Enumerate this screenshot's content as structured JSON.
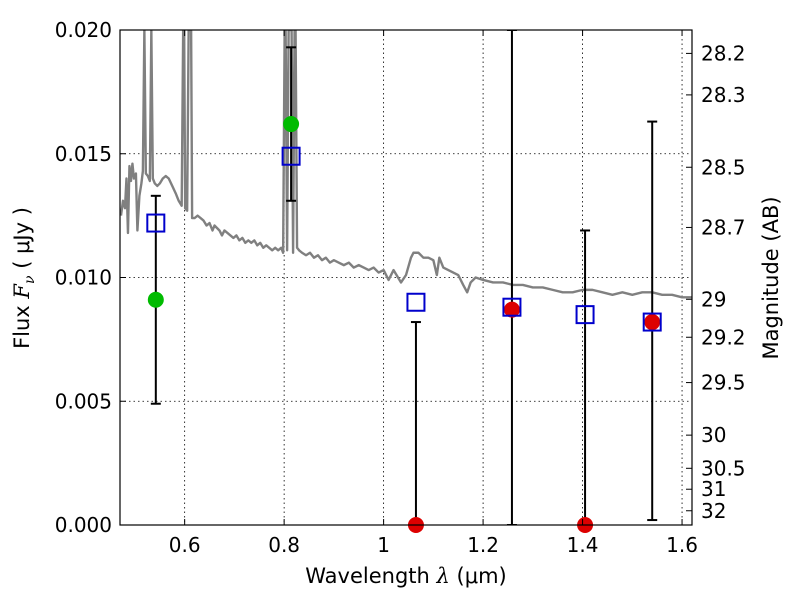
{
  "chart_data": {
    "type": "scatter",
    "xlabel_prefix": "Wavelength",
    "xlabel_symbol": "λ",
    "xlabel_unit": "(μm)",
    "ylabel_prefix": "Flux",
    "ylabel_symbol": "F",
    "ylabel_subscript": "ν",
    "ylabel_unit": "( μJy )",
    "y2label": "Magnitude (AB)",
    "xlim": [
      0.47,
      1.62
    ],
    "ylim": [
      0.0,
      0.02
    ],
    "xticks": [
      0.6,
      0.8,
      1.0,
      1.2,
      1.4,
      1.6
    ],
    "xtick_labels": [
      "0.6",
      "0.8",
      "1",
      "1.2",
      "1.4",
      "1.6"
    ],
    "yticks": [
      0.0,
      0.005,
      0.01,
      0.015,
      0.02
    ],
    "ytick_labels": [
      "0.000",
      "0.005",
      "0.010",
      "0.015",
      "0.020"
    ],
    "y2ticks": [
      28.2,
      28.3,
      28.5,
      28.7,
      29,
      29.2,
      29.5,
      30,
      30.5,
      31,
      32
    ],
    "y2tick_labels": [
      "28.2",
      "28.3",
      "28.5",
      "28.7",
      "29",
      "29.2",
      "29.5",
      "30",
      "30.5",
      "31",
      "32"
    ],
    "grid": true,
    "colors": {
      "model": "#808080",
      "observed": "#00bb00",
      "predicted": "#0000cc",
      "upper_limit": "#dd0000",
      "errorbar": "#000000"
    },
    "model_spectrum": [
      [
        0.472,
        0.0125
      ],
      [
        0.476,
        0.0131
      ],
      [
        0.48,
        0.0128
      ],
      [
        0.483,
        0.014
      ],
      [
        0.486,
        0.0118
      ],
      [
        0.489,
        0.0145
      ],
      [
        0.492,
        0.0139
      ],
      [
        0.495,
        0.0146
      ],
      [
        0.498,
        0.014
      ],
      [
        0.502,
        0.0142
      ],
      [
        0.505,
        0.0119
      ],
      [
        0.509,
        0.0133
      ],
      [
        0.513,
        0.0138
      ],
      [
        0.516,
        0.0143
      ],
      [
        0.519,
        0.02
      ],
      [
        0.522,
        0.0142
      ],
      [
        0.526,
        0.0141
      ],
      [
        0.53,
        0.0139
      ],
      [
        0.533,
        0.02
      ],
      [
        0.536,
        0.014
      ],
      [
        0.54,
        0.0138
      ],
      [
        0.545,
        0.0137
      ],
      [
        0.55,
        0.0138
      ],
      [
        0.556,
        0.014
      ],
      [
        0.562,
        0.0141
      ],
      [
        0.568,
        0.014
      ],
      [
        0.575,
        0.0137
      ],
      [
        0.582,
        0.0134
      ],
      [
        0.588,
        0.0131
      ],
      [
        0.594,
        0.0129
      ],
      [
        0.597,
        0.02
      ],
      [
        0.599,
        0.02
      ],
      [
        0.601,
        0.0128
      ],
      [
        0.605,
        0.0127
      ],
      [
        0.608,
        0.02
      ],
      [
        0.611,
        0.02
      ],
      [
        0.613,
        0.02
      ],
      [
        0.615,
        0.0124
      ],
      [
        0.62,
        0.0124
      ],
      [
        0.626,
        0.0125
      ],
      [
        0.632,
        0.0124
      ],
      [
        0.638,
        0.0123
      ],
      [
        0.644,
        0.0121
      ],
      [
        0.65,
        0.0122
      ],
      [
        0.656,
        0.0119
      ],
      [
        0.66,
        0.0121
      ],
      [
        0.665,
        0.012
      ],
      [
        0.67,
        0.0119
      ],
      [
        0.675,
        0.0117
      ],
      [
        0.68,
        0.0119
      ],
      [
        0.686,
        0.0118
      ],
      [
        0.692,
        0.0117
      ],
      [
        0.698,
        0.0116
      ],
      [
        0.704,
        0.0117
      ],
      [
        0.71,
        0.0115
      ],
      [
        0.716,
        0.0116
      ],
      [
        0.722,
        0.0114
      ],
      [
        0.728,
        0.0115
      ],
      [
        0.734,
        0.0114
      ],
      [
        0.74,
        0.0115
      ],
      [
        0.746,
        0.0113
      ],
      [
        0.752,
        0.0114
      ],
      [
        0.758,
        0.0112
      ],
      [
        0.764,
        0.0113
      ],
      [
        0.77,
        0.0112
      ],
      [
        0.776,
        0.0111
      ],
      [
        0.782,
        0.0112
      ],
      [
        0.788,
        0.0111
      ],
      [
        0.794,
        0.0112
      ],
      [
        0.798,
        0.011
      ],
      [
        0.801,
        0.02
      ],
      [
        0.803,
        0.02
      ],
      [
        0.806,
        0.0111
      ],
      [
        0.809,
        0.02
      ],
      [
        0.812,
        0.02
      ],
      [
        0.815,
        0.02
      ],
      [
        0.818,
        0.011
      ],
      [
        0.821,
        0.02
      ],
      [
        0.823,
        0.02
      ],
      [
        0.826,
        0.0112
      ],
      [
        0.83,
        0.0111
      ],
      [
        0.836,
        0.011
      ],
      [
        0.844,
        0.0109
      ],
      [
        0.852,
        0.011
      ],
      [
        0.86,
        0.0108
      ],
      [
        0.868,
        0.0109
      ],
      [
        0.876,
        0.0107
      ],
      [
        0.884,
        0.0108
      ],
      [
        0.892,
        0.0106
      ],
      [
        0.9,
        0.0107
      ],
      [
        0.91,
        0.0106
      ],
      [
        0.92,
        0.0105
      ],
      [
        0.93,
        0.0106
      ],
      [
        0.94,
        0.0104
      ],
      [
        0.95,
        0.0105
      ],
      [
        0.96,
        0.0104
      ],
      [
        0.97,
        0.0103
      ],
      [
        0.98,
        0.0104
      ],
      [
        0.99,
        0.0102
      ],
      [
        1.0,
        0.0103
      ],
      [
        1.01,
        0.0099
      ],
      [
        1.02,
        0.0103
      ],
      [
        1.035,
        0.0098
      ],
      [
        1.045,
        0.0101
      ],
      [
        1.055,
        0.0108
      ],
      [
        1.06,
        0.011
      ],
      [
        1.07,
        0.011
      ],
      [
        1.08,
        0.0108
      ],
      [
        1.09,
        0.0108
      ],
      [
        1.1,
        0.0107
      ],
      [
        1.107,
        0.0101
      ],
      [
        1.112,
        0.0108
      ],
      [
        1.12,
        0.0104
      ],
      [
        1.13,
        0.0103
      ],
      [
        1.14,
        0.0102
      ],
      [
        1.15,
        0.0101
      ],
      [
        1.16,
        0.0097
      ],
      [
        1.168,
        0.0094
      ],
      [
        1.175,
        0.0098
      ],
      [
        1.185,
        0.01
      ],
      [
        1.2,
        0.0099
      ],
      [
        1.22,
        0.0098
      ],
      [
        1.24,
        0.0098
      ],
      [
        1.26,
        0.0097
      ],
      [
        1.28,
        0.0097
      ],
      [
        1.3,
        0.0096
      ],
      [
        1.32,
        0.0096
      ],
      [
        1.34,
        0.0095
      ],
      [
        1.36,
        0.0094
      ],
      [
        1.38,
        0.0094
      ],
      [
        1.4,
        0.0095
      ],
      [
        1.42,
        0.0095
      ],
      [
        1.44,
        0.0094
      ],
      [
        1.46,
        0.0093
      ],
      [
        1.48,
        0.0094
      ],
      [
        1.5,
        0.0093
      ],
      [
        1.52,
        0.0094
      ],
      [
        1.54,
        0.0094
      ],
      [
        1.56,
        0.0093
      ],
      [
        1.58,
        0.0093
      ],
      [
        1.6,
        0.0092
      ],
      [
        1.62,
        0.0092
      ]
    ],
    "errorbars": [
      {
        "x": 0.542,
        "low": 0.0049,
        "high": 0.0133
      },
      {
        "x": 0.814,
        "low": 0.0131,
        "high": 0.0193
      },
      {
        "x": 1.065,
        "low": 0.0,
        "high": 0.0082
      },
      {
        "x": 1.258,
        "low": 0.0,
        "high": 0.02
      },
      {
        "x": 1.405,
        "low": 0.0,
        "high": 0.0119
      },
      {
        "x": 1.54,
        "low": 0.0002,
        "high": 0.0163
      }
    ],
    "predicted_points": [
      {
        "x": 0.542,
        "y": 0.0122
      },
      {
        "x": 0.814,
        "y": 0.0149
      },
      {
        "x": 1.065,
        "y": 0.009
      },
      {
        "x": 1.258,
        "y": 0.0088
      },
      {
        "x": 1.405,
        "y": 0.0085
      },
      {
        "x": 1.54,
        "y": 0.0082
      }
    ],
    "observed_points": [
      {
        "x": 0.542,
        "y": 0.0091
      },
      {
        "x": 0.814,
        "y": 0.0162
      }
    ],
    "upper_limit_points": [
      {
        "x": 1.258,
        "y": 0.0087
      },
      {
        "x": 1.54,
        "y": 0.0082
      },
      {
        "x": 1.065,
        "y": 0.0
      },
      {
        "x": 1.405,
        "y": 0.0
      }
    ]
  }
}
